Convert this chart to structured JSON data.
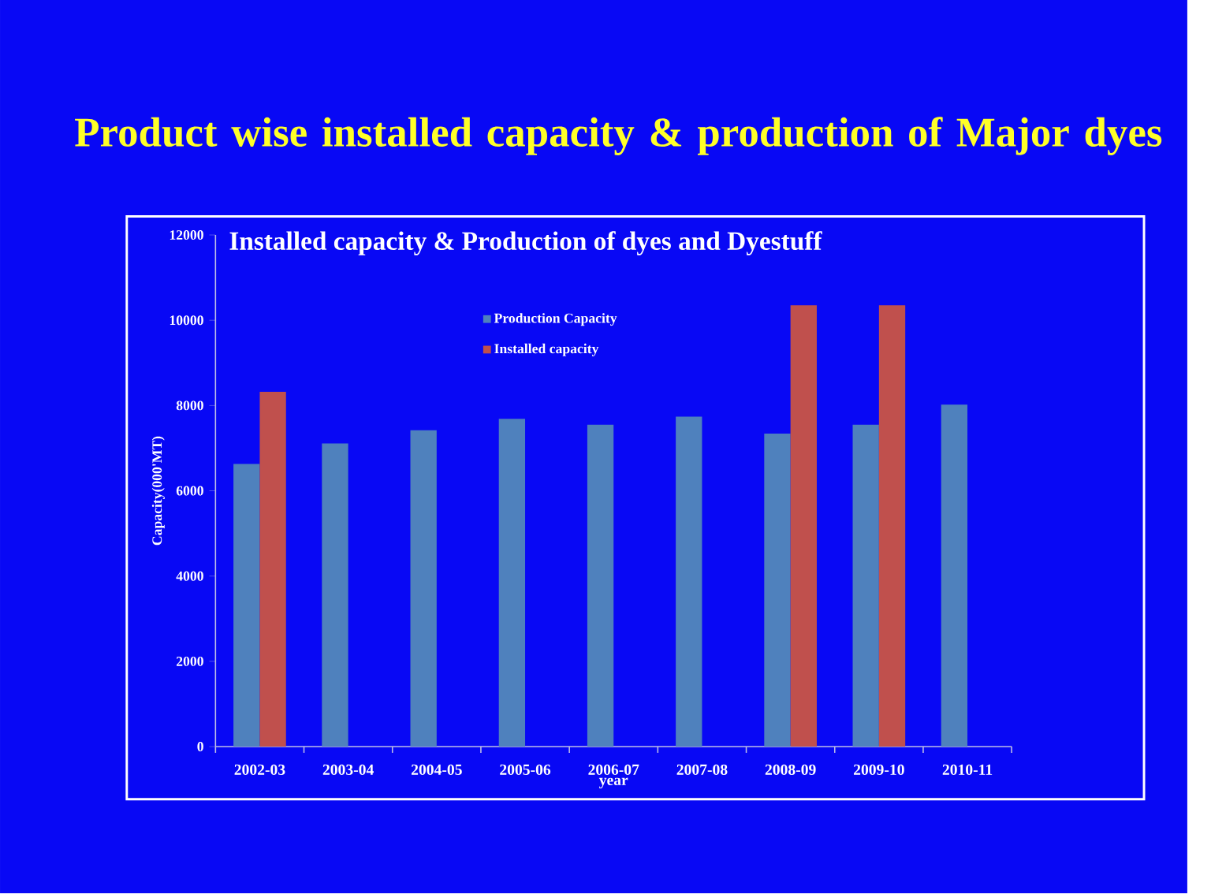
{
  "chart_data": {
    "type": "bar",
    "title": "Product wise installed capacity & production of Major dyes",
    "subtitle": "Installed capacity & Production of dyes and Dyestuff",
    "xlabel": "year",
    "ylabel": "Capacity(000'MT)",
    "categories": [
      "2002-03",
      "2003-04",
      "2004-05",
      "2005-06",
      "2006-07",
      "2007-08",
      "2008-09",
      "2009-10",
      "2010-11"
    ],
    "series": [
      {
        "name": "Production Capacity",
        "color": "#4f81bd",
        "values": [
          6630,
          7110,
          7420,
          7690,
          7550,
          7740,
          7340,
          7550,
          8020
        ]
      },
      {
        "name": "Installed capacity",
        "color": "#c0504d",
        "values": [
          8320,
          null,
          null,
          null,
          null,
          null,
          10350,
          10350,
          null
        ]
      }
    ],
    "ylim": [
      0,
      12000
    ],
    "yticks": [
      0,
      2000,
      4000,
      6000,
      8000,
      10000,
      12000
    ],
    "legend": "top"
  }
}
